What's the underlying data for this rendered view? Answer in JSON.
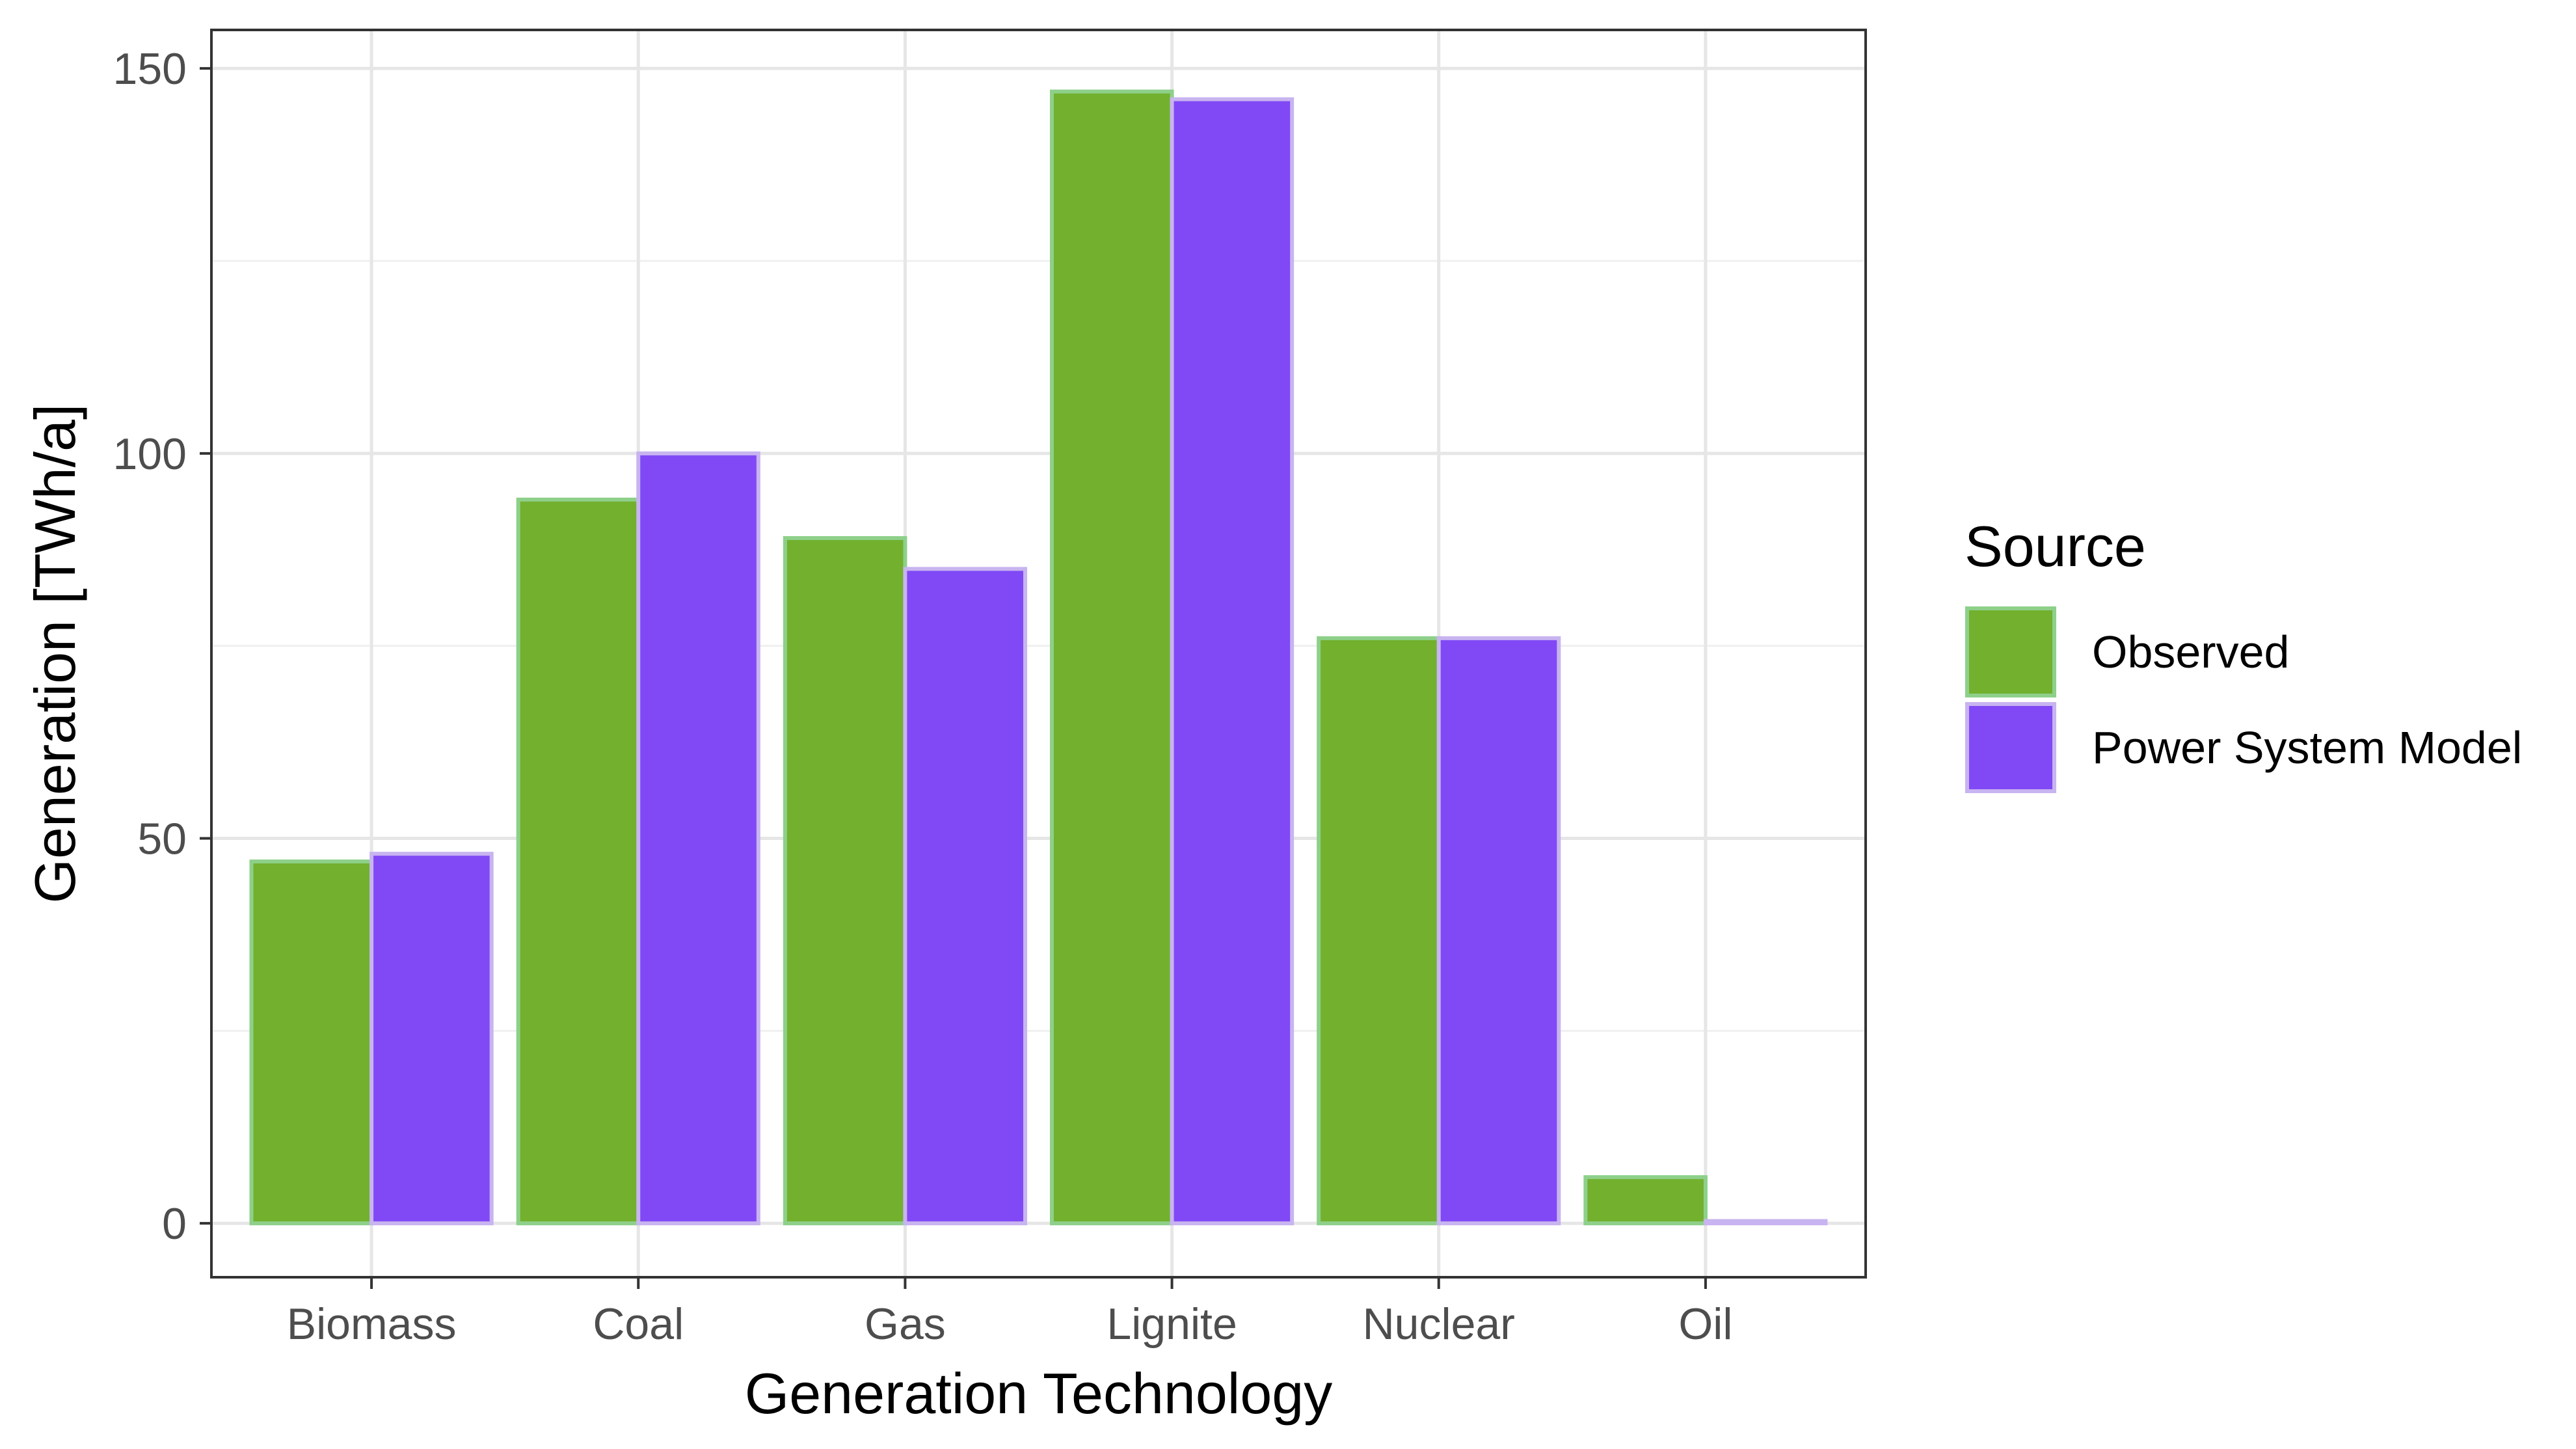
{
  "chart_data": {
    "type": "bar",
    "xlabel": "Generation Technology",
    "ylabel": "Generation [TWh/a]",
    "categories": [
      "Biomass",
      "Coal",
      "Gas",
      "Lignite",
      "Nuclear",
      "Oil"
    ],
    "series": [
      {
        "name": "Observed",
        "values": [
          47,
          94,
          89,
          147,
          76,
          6
        ],
        "fill": "#72b02e",
        "stroke": "#8ed08a"
      },
      {
        "name": "Power System Model",
        "values": [
          48,
          100,
          85,
          146,
          76,
          0.3
        ],
        "fill": "#8049f5",
        "stroke": "#c8b4f0"
      }
    ],
    "ylim": [
      -7,
      155
    ],
    "yticks": [
      0,
      50,
      100,
      150
    ],
    "ytick_labels": [
      "0",
      "50",
      "100",
      "150"
    ],
    "grid": true,
    "legend": {
      "title": "Source",
      "position": "right"
    }
  }
}
